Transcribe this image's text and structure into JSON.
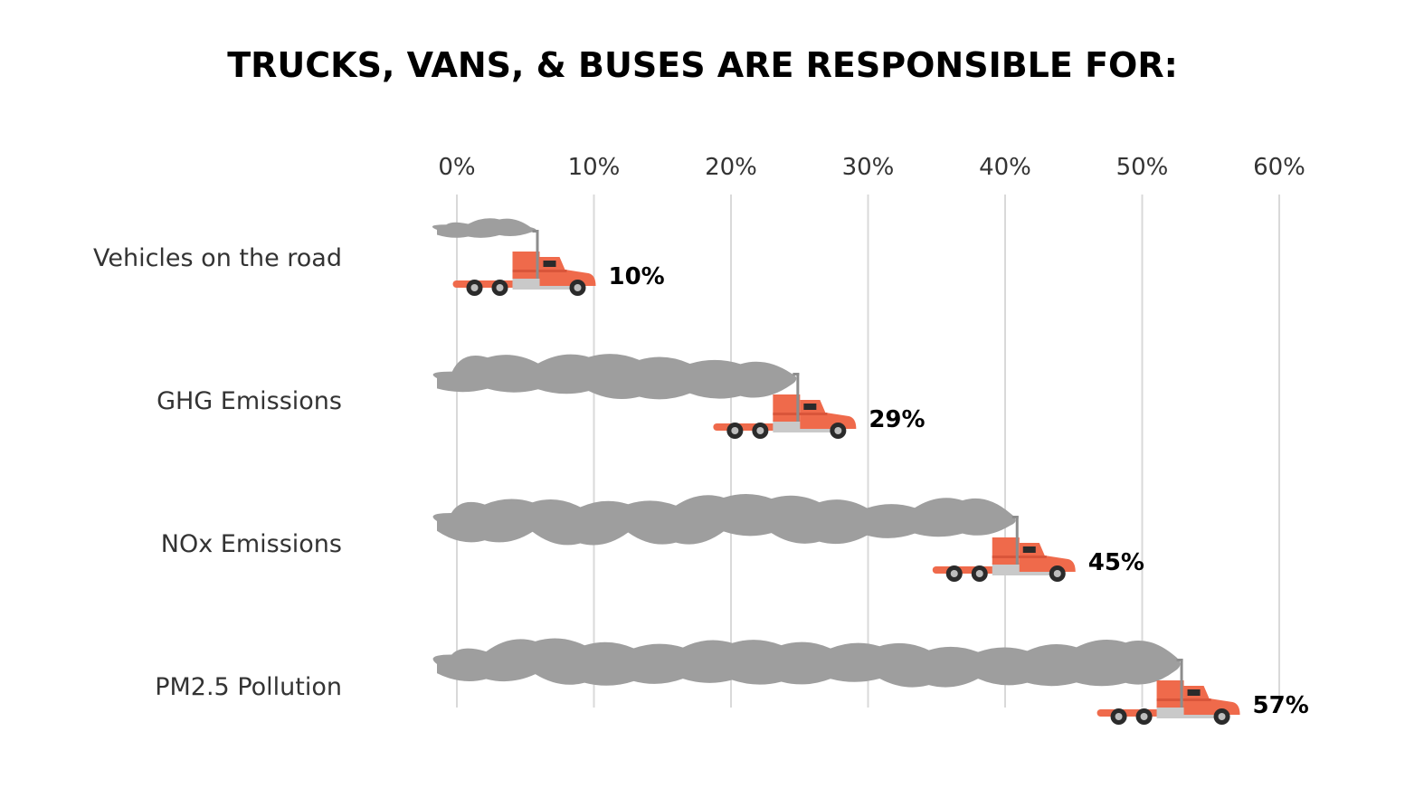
{
  "chart_data": {
    "type": "bar",
    "title": "TRUCKS, VANS, & BUSES ARE RESPONSIBLE FOR:",
    "xlabel": "",
    "ylabel": "",
    "orientation": "horizontal",
    "categories": [
      "Vehicles on the road",
      "GHG Emissions",
      "NOx Emissions",
      "PM2.5 Pollution"
    ],
    "values": [
      10,
      29,
      45,
      57
    ],
    "value_labels": [
      "10%",
      "29%",
      "45%",
      "57%"
    ],
    "xlim": [
      0,
      60
    ],
    "x_ticks": [
      0,
      10,
      20,
      30,
      40,
      50,
      60
    ],
    "x_tick_labels": [
      "0%",
      "10%",
      "20%",
      "30%",
      "40%",
      "50%",
      "60%"
    ],
    "axis_position": "top",
    "grid": true,
    "legend": "none",
    "bar_style": "truck-with-exhaust-smoke",
    "colors": {
      "truck": "#ef6a4b",
      "truck_dark": "#d9553a",
      "smoke": "#9e9e9e",
      "grid": "#d9d9d9",
      "chassis": "#c9c9c9",
      "wheel": "#2b2b2b"
    }
  }
}
